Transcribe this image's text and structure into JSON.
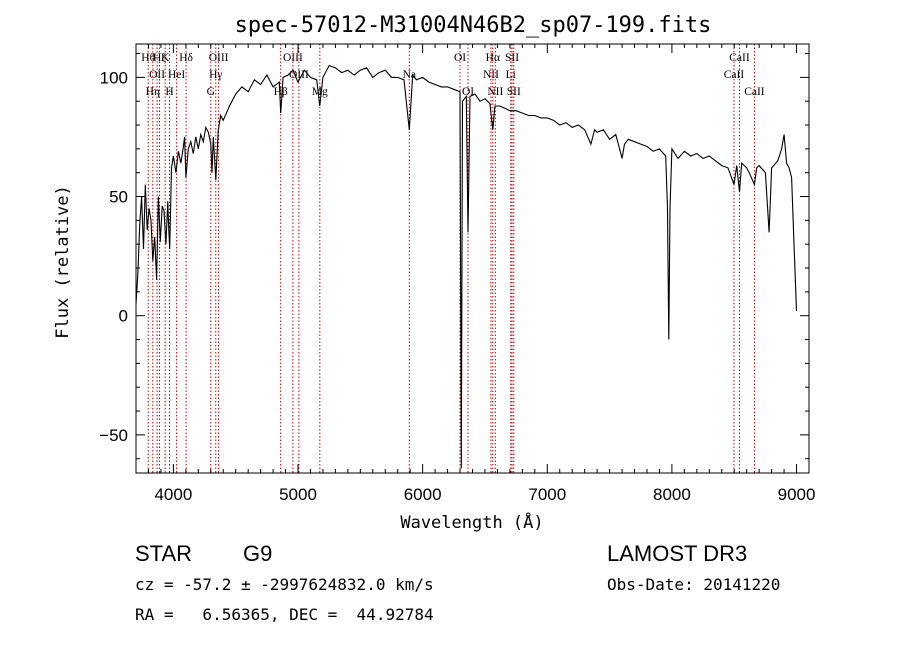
{
  "chart_data": {
    "type": "line",
    "title": "spec-57012-M31004N46B2_sp07-199.fits",
    "xlabel": "Wavelength (Å)",
    "ylabel": "Flux (relative)",
    "xlim": [
      3700,
      9100
    ],
    "ylim": [
      -66,
      114
    ],
    "xticks": [
      4000,
      5000,
      6000,
      7000,
      8000,
      9000
    ],
    "yticks": [
      -50,
      0,
      50,
      100
    ],
    "grid": false,
    "series": [
      {
        "color": "#000000",
        "points": [
          [
            3700,
            5
          ],
          [
            3715,
            18
          ],
          [
            3730,
            38
          ],
          [
            3745,
            50
          ],
          [
            3760,
            28
          ],
          [
            3775,
            55
          ],
          [
            3790,
            36
          ],
          [
            3805,
            45
          ],
          [
            3820,
            40
          ],
          [
            3835,
            23
          ],
          [
            3850,
            33
          ],
          [
            3865,
            15
          ],
          [
            3880,
            50
          ],
          [
            3895,
            31
          ],
          [
            3910,
            46
          ],
          [
            3925,
            44
          ],
          [
            3940,
            30
          ],
          [
            3955,
            48
          ],
          [
            3960,
            40
          ],
          [
            3970,
            28
          ],
          [
            3985,
            62
          ],
          [
            4000,
            67
          ],
          [
            4020,
            60
          ],
          [
            4040,
            69
          ],
          [
            4060,
            64
          ],
          [
            4080,
            71
          ],
          [
            4090,
            75
          ],
          [
            4100,
            58
          ],
          [
            4120,
            70
          ],
          [
            4140,
            73
          ],
          [
            4160,
            68
          ],
          [
            4180,
            75
          ],
          [
            4200,
            70
          ],
          [
            4220,
            76
          ],
          [
            4240,
            73
          ],
          [
            4260,
            79
          ],
          [
            4280,
            77
          ],
          [
            4300,
            72
          ],
          [
            4310,
            60
          ],
          [
            4320,
            75
          ],
          [
            4340,
            57
          ],
          [
            4360,
            78
          ],
          [
            4380,
            84
          ],
          [
            4400,
            82
          ],
          [
            4450,
            88
          ],
          [
            4500,
            93
          ],
          [
            4550,
            96
          ],
          [
            4600,
            94
          ],
          [
            4650,
            99
          ],
          [
            4700,
            97
          ],
          [
            4750,
            101
          ],
          [
            4800,
            96
          ],
          [
            4850,
            98
          ],
          [
            4861,
            85
          ],
          [
            4880,
            100
          ],
          [
            4920,
            101
          ],
          [
            4960,
            103
          ],
          [
            5000,
            98
          ],
          [
            5050,
            103
          ],
          [
            5100,
            100
          ],
          [
            5150,
            99
          ],
          [
            5175,
            88
          ],
          [
            5200,
            100
          ],
          [
            5250,
            105
          ],
          [
            5300,
            104
          ],
          [
            5350,
            102
          ],
          [
            5400,
            103
          ],
          [
            5450,
            101
          ],
          [
            5500,
            103
          ],
          [
            5550,
            104
          ],
          [
            5600,
            100
          ],
          [
            5650,
            102
          ],
          [
            5700,
            103
          ],
          [
            5750,
            100
          ],
          [
            5800,
            100
          ],
          [
            5850,
            99
          ],
          [
            5893,
            78
          ],
          [
            5920,
            101
          ],
          [
            5950,
            99
          ],
          [
            6000,
            100
          ],
          [
            6050,
            98
          ],
          [
            6100,
            97
          ],
          [
            6150,
            96
          ],
          [
            6200,
            96
          ],
          [
            6250,
            95
          ],
          [
            6300,
            94
          ],
          [
            6310,
            -64
          ],
          [
            6320,
            90
          ],
          [
            6350,
            92
          ],
          [
            6364,
            35
          ],
          [
            6380,
            92
          ],
          [
            6420,
            93
          ],
          [
            6460,
            90
          ],
          [
            6500,
            91
          ],
          [
            6540,
            89
          ],
          [
            6563,
            78
          ],
          [
            6580,
            88
          ],
          [
            6620,
            88
          ],
          [
            6660,
            87
          ],
          [
            6700,
            86
          ],
          [
            6750,
            86
          ],
          [
            6800,
            85
          ],
          [
            6850,
            84
          ],
          [
            6900,
            84
          ],
          [
            6950,
            83
          ],
          [
            7000,
            83
          ],
          [
            7050,
            82
          ],
          [
            7100,
            80
          ],
          [
            7150,
            81
          ],
          [
            7200,
            79
          ],
          [
            7250,
            80
          ],
          [
            7300,
            78
          ],
          [
            7350,
            72
          ],
          [
            7380,
            78
          ],
          [
            7400,
            77
          ],
          [
            7450,
            78
          ],
          [
            7500,
            74
          ],
          [
            7550,
            76
          ],
          [
            7600,
            66
          ],
          [
            7620,
            72
          ],
          [
            7650,
            74
          ],
          [
            7700,
            73
          ],
          [
            7750,
            72
          ],
          [
            7800,
            71
          ],
          [
            7850,
            69
          ],
          [
            7900,
            70
          ],
          [
            7950,
            67
          ],
          [
            7965,
            45
          ],
          [
            7975,
            -10
          ],
          [
            7985,
            45
          ],
          [
            8000,
            70
          ],
          [
            8050,
            66
          ],
          [
            8100,
            69
          ],
          [
            8150,
            67
          ],
          [
            8200,
            68
          ],
          [
            8250,
            66
          ],
          [
            8300,
            67
          ],
          [
            8350,
            65
          ],
          [
            8400,
            63
          ],
          [
            8450,
            62
          ],
          [
            8498,
            55
          ],
          [
            8520,
            63
          ],
          [
            8542,
            52
          ],
          [
            8560,
            64
          ],
          [
            8600,
            62
          ],
          [
            8620,
            60
          ],
          [
            8662,
            55
          ],
          [
            8680,
            62
          ],
          [
            8700,
            63
          ],
          [
            8750,
            60
          ],
          [
            8780,
            35
          ],
          [
            8800,
            62
          ],
          [
            8850,
            65
          ],
          [
            8880,
            70
          ],
          [
            8900,
            76
          ],
          [
            8920,
            64
          ],
          [
            8940,
            62
          ],
          [
            8960,
            58
          ],
          [
            8980,
            30
          ],
          [
            9000,
            2
          ]
        ]
      }
    ],
    "lines": [
      {
        "w": 3798,
        "labels": [
          "Hθ"
        ],
        "tier": 0
      },
      {
        "w": 3835,
        "labels": [
          "Hη"
        ],
        "tier": 2
      },
      {
        "w": 3869,
        "labels": [
          "OII"
        ],
        "tier": 1
      },
      {
        "w": 3889,
        "labels": [
          "Hζ"
        ],
        "tier": 0
      },
      {
        "w": 3934,
        "labels": [
          "K"
        ],
        "tier": 0
      },
      {
        "w": 3969,
        "labels": [
          "H"
        ],
        "tier": 2
      },
      {
        "w": 4026,
        "labels": [
          "HeI"
        ],
        "tier": 1
      },
      {
        "w": 4102,
        "labels": [
          "Hδ"
        ],
        "tier": 0
      },
      {
        "w": 4300,
        "labels": [
          "G"
        ],
        "tier": 2
      },
      {
        "w": 4340,
        "labels": [
          "Hγ"
        ],
        "tier": 1
      },
      {
        "w": 4363,
        "labels": [
          "OIII"
        ],
        "tier": 0
      },
      {
        "w": 4861,
        "labels": [
          "Hβ"
        ],
        "tier": 2
      },
      {
        "w": 4959,
        "labels": [
          "OIII"
        ],
        "tier": 0
      },
      {
        "w": 5007,
        "labels": [
          "OIII"
        ],
        "tier": 1
      },
      {
        "w": 5175,
        "labels": [
          "Mg"
        ],
        "tier": 2
      },
      {
        "w": 5893,
        "labels": [
          "Na"
        ],
        "tier": 1
      },
      {
        "w": 6300,
        "labels": [
          "OI"
        ],
        "tier": 0
      },
      {
        "w": 6364,
        "labels": [
          "OI"
        ],
        "tier": 2
      },
      {
        "w": 6548,
        "labels": [
          "NII"
        ],
        "tier": 1
      },
      {
        "w": 6563,
        "labels": [
          "Hα"
        ],
        "tier": 0
      },
      {
        "w": 6583,
        "labels": [
          "NII"
        ],
        "tier": 2
      },
      {
        "w": 6707,
        "labels": [
          "Li"
        ],
        "tier": 1
      },
      {
        "w": 6717,
        "labels": [
          "SII"
        ],
        "tier": 0
      },
      {
        "w": 6731,
        "labels": [
          "SII"
        ],
        "tier": 2
      },
      {
        "w": 8498,
        "labels": [
          "CaII"
        ],
        "tier": 1
      },
      {
        "w": 8542,
        "labels": [
          "CaII"
        ],
        "tier": 0
      },
      {
        "w": 8662,
        "labels": [
          "CaII"
        ],
        "tier": 2
      }
    ]
  },
  "info": {
    "class_label": "STAR",
    "subclass_label": "G9",
    "survey": "LAMOST DR3",
    "cz": "cz = -57.2 ± -2997624832.0 km/s",
    "obs_date": "Obs-Date: 20141220",
    "coords": "RA =   6.56365, DEC =  44.92784"
  }
}
